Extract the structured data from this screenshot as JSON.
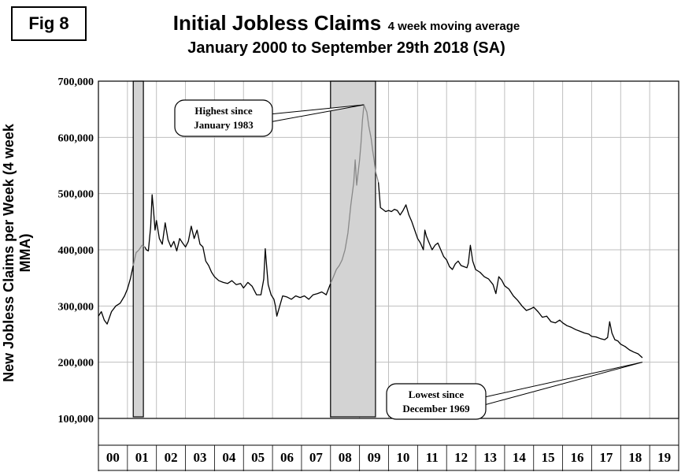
{
  "figure_label": "Fig 8",
  "title_main": "Initial Jobless Claims",
  "title_suffix": "4 week moving average",
  "title_line2": "January 2000 to September 29th 2018 (SA)",
  "chart_data": {
    "type": "line",
    "ylabel": "New Jobless Claims per Week (4 week MMA)",
    "xlabel": "",
    "ylim": [
      100000,
      700000
    ],
    "y_ticks": [
      "100,000",
      "200,000",
      "300,000",
      "400,000",
      "500,000",
      "600,000",
      "700,000"
    ],
    "y_tick_values": [
      100000,
      200000,
      300000,
      400000,
      500000,
      600000,
      700000
    ],
    "xlim": [
      2000,
      2020
    ],
    "x_tick_labels": [
      "00",
      "01",
      "02",
      "03",
      "04",
      "05",
      "06",
      "07",
      "08",
      "09",
      "10",
      "11",
      "12",
      "13",
      "14",
      "15",
      "16",
      "17",
      "18",
      "19"
    ],
    "grid": true,
    "recessions": [
      {
        "start": 2001.2,
        "end": 2001.55
      },
      {
        "start": 2008.0,
        "end": 2009.55
      }
    ],
    "series": [
      {
        "points": [
          [
            2000.0,
            282000
          ],
          [
            2000.1,
            290000
          ],
          [
            2000.2,
            275000
          ],
          [
            2000.3,
            268000
          ],
          [
            2000.45,
            290000
          ],
          [
            2000.6,
            300000
          ],
          [
            2000.75,
            305000
          ],
          [
            2000.9,
            318000
          ],
          [
            2001.0,
            330000
          ],
          [
            2001.1,
            348000
          ],
          [
            2001.2,
            372000
          ],
          [
            2001.3,
            395000
          ],
          [
            2001.4,
            400000
          ],
          [
            2001.5,
            408000
          ],
          [
            2001.6,
            405000
          ],
          [
            2001.65,
            400000
          ],
          [
            2001.72,
            398000
          ],
          [
            2001.8,
            440000
          ],
          [
            2001.85,
            498000
          ],
          [
            2001.9,
            470000
          ],
          [
            2001.95,
            435000
          ],
          [
            2002.0,
            452000
          ],
          [
            2002.1,
            420000
          ],
          [
            2002.2,
            410000
          ],
          [
            2002.3,
            448000
          ],
          [
            2002.4,
            418000
          ],
          [
            2002.5,
            405000
          ],
          [
            2002.6,
            415000
          ],
          [
            2002.7,
            398000
          ],
          [
            2002.8,
            420000
          ],
          [
            2002.9,
            412000
          ],
          [
            2003.0,
            405000
          ],
          [
            2003.1,
            415000
          ],
          [
            2003.2,
            442000
          ],
          [
            2003.3,
            420000
          ],
          [
            2003.4,
            435000
          ],
          [
            2003.5,
            410000
          ],
          [
            2003.6,
            405000
          ],
          [
            2003.7,
            380000
          ],
          [
            2003.8,
            372000
          ],
          [
            2003.9,
            360000
          ],
          [
            2004.0,
            352000
          ],
          [
            2004.15,
            345000
          ],
          [
            2004.3,
            342000
          ],
          [
            2004.45,
            340000
          ],
          [
            2004.6,
            345000
          ],
          [
            2004.75,
            338000
          ],
          [
            2004.9,
            340000
          ],
          [
            2005.0,
            332000
          ],
          [
            2005.15,
            342000
          ],
          [
            2005.3,
            335000
          ],
          [
            2005.45,
            320000
          ],
          [
            2005.6,
            320000
          ],
          [
            2005.7,
            348000
          ],
          [
            2005.75,
            402000
          ],
          [
            2005.8,
            370000
          ],
          [
            2005.85,
            338000
          ],
          [
            2005.95,
            320000
          ],
          [
            2006.05,
            312000
          ],
          [
            2006.1,
            300000
          ],
          [
            2006.15,
            282000
          ],
          [
            2006.25,
            300000
          ],
          [
            2006.35,
            318000
          ],
          [
            2006.5,
            316000
          ],
          [
            2006.65,
            312000
          ],
          [
            2006.8,
            318000
          ],
          [
            2006.95,
            315000
          ],
          [
            2007.1,
            318000
          ],
          [
            2007.25,
            312000
          ],
          [
            2007.4,
            320000
          ],
          [
            2007.55,
            322000
          ],
          [
            2007.7,
            325000
          ],
          [
            2007.85,
            320000
          ],
          [
            2008.0,
            340000
          ],
          [
            2008.1,
            352000
          ],
          [
            2008.2,
            365000
          ],
          [
            2008.3,
            372000
          ],
          [
            2008.4,
            382000
          ],
          [
            2008.5,
            400000
          ],
          [
            2008.6,
            430000
          ],
          [
            2008.7,
            480000
          ],
          [
            2008.8,
            520000
          ],
          [
            2008.85,
            560000
          ],
          [
            2008.9,
            515000
          ],
          [
            2009.0,
            560000
          ],
          [
            2009.05,
            590000
          ],
          [
            2009.1,
            630000
          ],
          [
            2009.15,
            658000
          ],
          [
            2009.25,
            645000
          ],
          [
            2009.32,
            620000
          ],
          [
            2009.4,
            598000
          ],
          [
            2009.45,
            578000
          ],
          [
            2009.5,
            560000
          ],
          [
            2009.55,
            540000
          ],
          [
            2009.65,
            520000
          ],
          [
            2009.72,
            475000
          ],
          [
            2009.8,
            472000
          ],
          [
            2009.9,
            468000
          ],
          [
            2010.0,
            470000
          ],
          [
            2010.1,
            468000
          ],
          [
            2010.2,
            472000
          ],
          [
            2010.3,
            470000
          ],
          [
            2010.4,
            462000
          ],
          [
            2010.5,
            470000
          ],
          [
            2010.6,
            480000
          ],
          [
            2010.7,
            462000
          ],
          [
            2010.8,
            450000
          ],
          [
            2010.9,
            435000
          ],
          [
            2011.0,
            420000
          ],
          [
            2011.1,
            412000
          ],
          [
            2011.2,
            400000
          ],
          [
            2011.25,
            435000
          ],
          [
            2011.3,
            425000
          ],
          [
            2011.4,
            412000
          ],
          [
            2011.5,
            400000
          ],
          [
            2011.6,
            408000
          ],
          [
            2011.7,
            412000
          ],
          [
            2011.8,
            400000
          ],
          [
            2011.9,
            388000
          ],
          [
            2012.0,
            382000
          ],
          [
            2012.1,
            370000
          ],
          [
            2012.2,
            365000
          ],
          [
            2012.3,
            375000
          ],
          [
            2012.4,
            380000
          ],
          [
            2012.5,
            372000
          ],
          [
            2012.6,
            370000
          ],
          [
            2012.7,
            368000
          ],
          [
            2012.75,
            376000
          ],
          [
            2012.82,
            408000
          ],
          [
            2012.9,
            380000
          ],
          [
            2013.0,
            365000
          ],
          [
            2013.15,
            360000
          ],
          [
            2013.3,
            352000
          ],
          [
            2013.45,
            348000
          ],
          [
            2013.6,
            338000
          ],
          [
            2013.7,
            322000
          ],
          [
            2013.8,
            352000
          ],
          [
            2013.9,
            346000
          ],
          [
            2014.0,
            336000
          ],
          [
            2014.15,
            330000
          ],
          [
            2014.3,
            318000
          ],
          [
            2014.45,
            310000
          ],
          [
            2014.6,
            300000
          ],
          [
            2014.75,
            292000
          ],
          [
            2014.9,
            295000
          ],
          [
            2015.0,
            298000
          ],
          [
            2015.15,
            290000
          ],
          [
            2015.3,
            280000
          ],
          [
            2015.45,
            282000
          ],
          [
            2015.6,
            272000
          ],
          [
            2015.75,
            270000
          ],
          [
            2015.9,
            275000
          ],
          [
            2016.0,
            270000
          ],
          [
            2016.15,
            265000
          ],
          [
            2016.3,
            262000
          ],
          [
            2016.45,
            258000
          ],
          [
            2016.6,
            255000
          ],
          [
            2016.75,
            252000
          ],
          [
            2016.9,
            250000
          ],
          [
            2017.0,
            246000
          ],
          [
            2017.15,
            245000
          ],
          [
            2017.3,
            242000
          ],
          [
            2017.45,
            240000
          ],
          [
            2017.55,
            244000
          ],
          [
            2017.62,
            272000
          ],
          [
            2017.7,
            252000
          ],
          [
            2017.8,
            240000
          ],
          [
            2017.9,
            238000
          ],
          [
            2018.0,
            232000
          ],
          [
            2018.15,
            228000
          ],
          [
            2018.3,
            222000
          ],
          [
            2018.45,
            218000
          ],
          [
            2018.6,
            215000
          ],
          [
            2018.75,
            208000
          ]
        ]
      }
    ],
    "annotations": [
      {
        "lines": [
          "Highest since",
          "January 1983"
        ],
        "target": [
          2009.15,
          658000
        ]
      },
      {
        "lines": [
          "Lowest since",
          "December 1969"
        ],
        "target": [
          2018.75,
          200000
        ]
      }
    ]
  },
  "colors": {
    "line": "#000000",
    "line_in_recession": "#888888",
    "recession_fill": "#d3d3d3",
    "grid": "#bfbfbf"
  }
}
